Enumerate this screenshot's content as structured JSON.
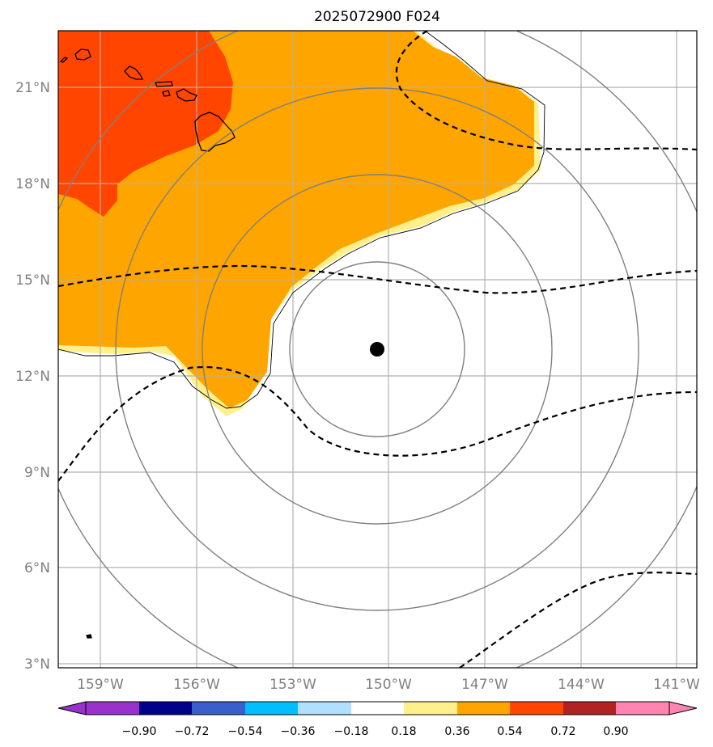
{
  "title": "2025072900 F024",
  "x_ticks": [
    "159°W",
    "156°W",
    "153°W",
    "150°W",
    "147°W",
    "144°W",
    "141°W"
  ],
  "y_ticks": [
    "21°N",
    "18°N",
    "15°N",
    "12°N",
    "9°N",
    "6°N",
    "3°N"
  ],
  "colorbar": {
    "ticks": [
      "−0.90",
      "−0.72",
      "−0.54",
      "−0.36",
      "−0.18",
      "0.18",
      "0.36",
      "0.54",
      "0.72",
      "0.90"
    ],
    "colors": [
      "#9932cc",
      "#00008b",
      "#3a5fcd",
      "#00bfff",
      "#b0e0ff",
      "#ffffff",
      "#fff08c",
      "#ffa500",
      "#ff4500",
      "#b22222",
      "#ff85b0"
    ]
  },
  "storm_center": {
    "lon": -150.2,
    "lat": 12.8
  },
  "range_rings_deg": [
    2.7,
    5.4,
    8.1,
    10.8
  ],
  "colors": {
    "field_high": "#ff4500",
    "field_mid": "#ffa500",
    "field_low": "#fff08c",
    "grid": "#b0b0b0",
    "rings": "#808080",
    "contour": "#000000"
  },
  "chart_data": {
    "type": "map",
    "xlim": [
      -160.3,
      -140.6
    ],
    "ylim": [
      2.8,
      22.6
    ],
    "shaded_field_levels": [
      -0.9,
      -0.72,
      -0.54,
      -0.36,
      -0.18,
      0.18,
      0.36,
      0.54,
      0.72,
      0.9
    ],
    "dashed_contours": 4,
    "grid": true
  }
}
